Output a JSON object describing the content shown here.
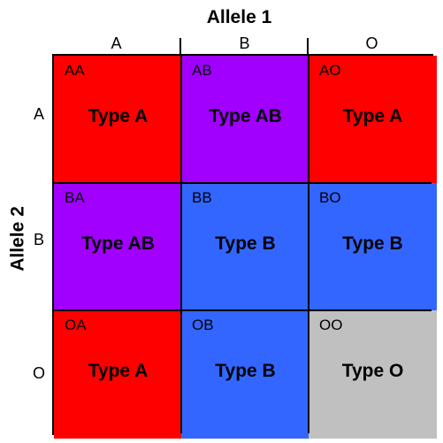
{
  "allele1_title": "Allele 1",
  "allele2_title": "Allele 2",
  "columns": [
    "A",
    "B",
    "O"
  ],
  "rows": [
    "A",
    "B",
    "O"
  ],
  "colors": {
    "typeA": "#ff0000",
    "typeB": "#3366ff",
    "typeAB": "#a100ff",
    "typeO": "#c0c0c0"
  },
  "cells": [
    [
      {
        "genotype": "AA",
        "phenotype": "Type A",
        "color": "#ff0000"
      },
      {
        "genotype": "AB",
        "phenotype": "Type AB",
        "color": "#a100ff"
      },
      {
        "genotype": "AO",
        "phenotype": "Type A",
        "color": "#ff0000"
      }
    ],
    [
      {
        "genotype": "BA",
        "phenotype": "Type AB",
        "color": "#a100ff"
      },
      {
        "genotype": "BB",
        "phenotype": "Type B",
        "color": "#3366ff"
      },
      {
        "genotype": "BO",
        "phenotype": "Type B",
        "color": "#3366ff"
      }
    ],
    [
      {
        "genotype": "OA",
        "phenotype": "Type A",
        "color": "#ff0000"
      },
      {
        "genotype": "OB",
        "phenotype": "Type B",
        "color": "#3366ff"
      },
      {
        "genotype": "OO",
        "phenotype": "Type O",
        "color": "#c0c0c0"
      }
    ]
  ]
}
